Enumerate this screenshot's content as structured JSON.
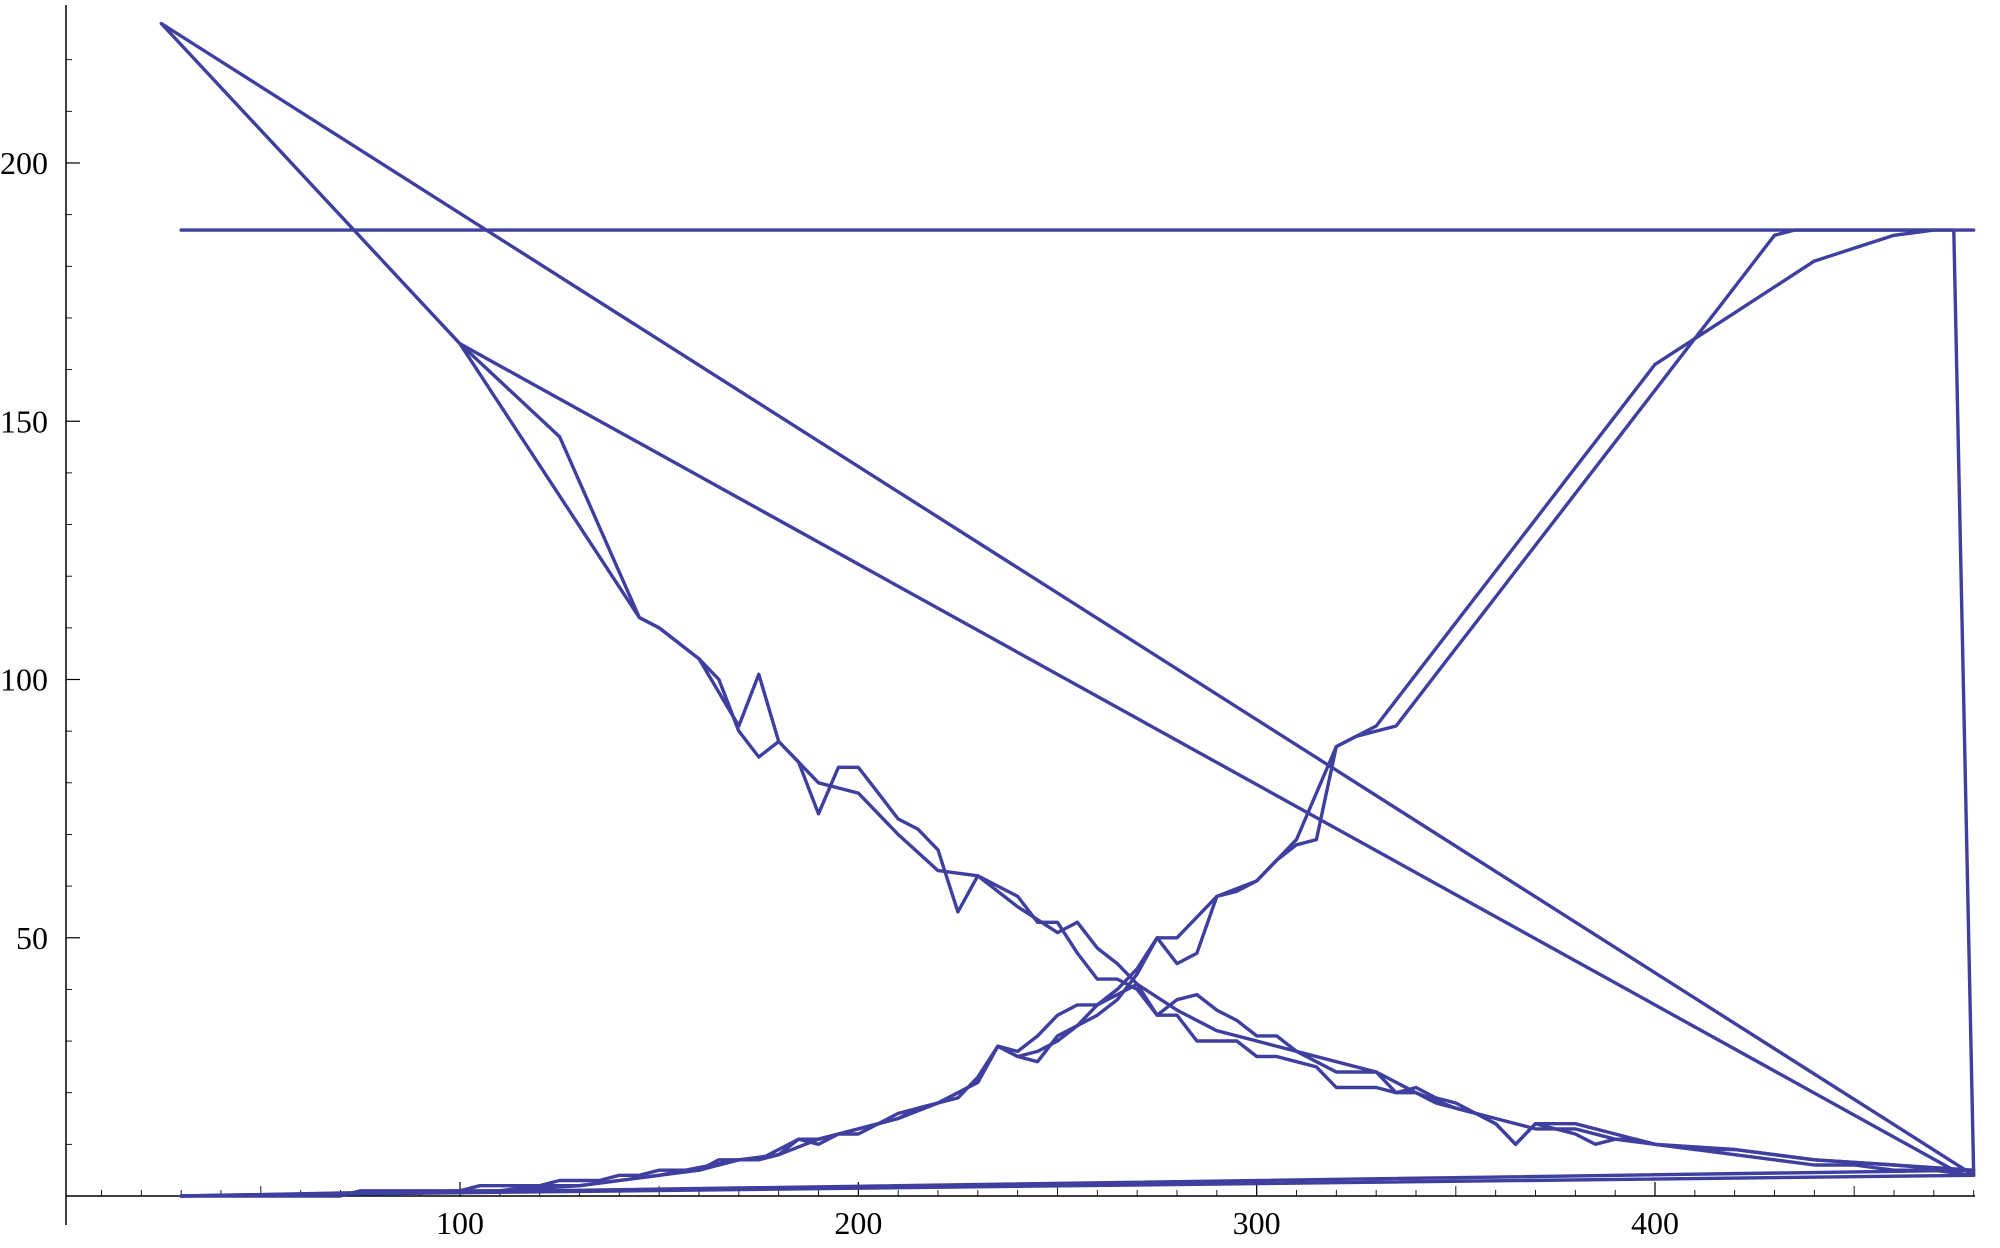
{
  "chart_data": {
    "type": "line",
    "title": "",
    "xlabel": "",
    "ylabel": "",
    "xlim": [
      0,
      482
    ],
    "ylim": [
      0,
      228
    ],
    "x_ticks": [
      100,
      200,
      300,
      400
    ],
    "y_ticks": [
      50,
      100,
      150,
      200
    ],
    "grid": false,
    "legend": "none",
    "colors": {
      "line": "#3F3F9F",
      "axis": "#000000"
    },
    "series": [
      {
        "x": [
          30,
          70,
          75,
          100,
          105,
          110,
          115,
          120,
          125,
          130,
          135,
          140,
          145,
          150,
          155,
          160,
          165,
          170,
          175,
          180,
          185,
          190,
          195,
          200,
          205,
          210,
          215,
          220,
          225,
          230,
          235,
          240,
          245,
          250,
          255,
          260,
          265,
          270,
          275,
          280,
          285,
          290,
          295,
          300,
          305,
          310,
          315,
          320,
          325,
          330,
          335,
          340,
          345,
          350,
          355,
          360,
          365,
          370,
          375,
          380,
          385,
          390,
          395,
          400,
          405,
          410,
          415,
          420,
          425,
          430,
          435,
          440,
          445,
          450,
          455,
          460,
          465,
          470,
          475,
          480,
          30
        ],
        "y": [
          0,
          0,
          1,
          1,
          2,
          2,
          2,
          2,
          3,
          3,
          3,
          4,
          4,
          5,
          5,
          5,
          7,
          7,
          7,
          8,
          11,
          11,
          12,
          13,
          14,
          15,
          17,
          18,
          20,
          22,
          29,
          28,
          31,
          35,
          37,
          37,
          40,
          44,
          50,
          45,
          47,
          58,
          59,
          61,
          65,
          68,
          69,
          87,
          89,
          90,
          91,
          96,
          101,
          106,
          111,
          116,
          121,
          126,
          131,
          136,
          141,
          146,
          151,
          156,
          161,
          166,
          171,
          176,
          181,
          186,
          187,
          187,
          187,
          187,
          187,
          187,
          187,
          187,
          187,
          4,
          0
        ]
      },
      {
        "x": [
          25,
          100,
          125,
          145,
          150,
          155,
          160,
          165,
          170,
          175,
          180,
          185,
          190,
          195,
          200,
          205,
          210,
          215,
          220,
          225,
          230,
          235,
          240,
          245,
          250,
          255,
          260,
          265,
          270,
          275,
          280,
          285,
          290,
          295,
          300,
          305,
          310,
          315,
          320,
          325,
          330,
          335,
          340,
          345,
          350,
          355,
          360,
          365,
          370,
          375,
          380,
          385,
          390,
          395,
          400,
          410,
          420,
          430,
          440,
          450,
          460,
          470,
          480,
          25
        ],
        "y": [
          227,
          165,
          147,
          112,
          110,
          107,
          104,
          100,
          90,
          85,
          88,
          84,
          74,
          83,
          83,
          78,
          73,
          71,
          67,
          55,
          62,
          60,
          58,
          53,
          53,
          47,
          42,
          42,
          40,
          35,
          35,
          30,
          30,
          30,
          27,
          27,
          26,
          25,
          21,
          21,
          21,
          20,
          21,
          19,
          18,
          16,
          14,
          10,
          14,
          13,
          12,
          10,
          11,
          11,
          10,
          9,
          8,
          7,
          6,
          6,
          5,
          5,
          4,
          227
        ]
      },
      {
        "x": [
          30,
          100,
          110,
          120,
          130,
          140,
          150,
          160,
          170,
          175,
          180,
          185,
          190,
          195,
          200,
          205,
          210,
          215,
          220,
          225,
          230,
          235,
          240,
          245,
          250,
          255,
          260,
          265,
          270,
          275,
          280,
          285,
          290,
          295,
          300,
          305,
          310,
          320,
          330,
          335,
          340,
          345,
          350,
          355,
          360,
          365,
          370,
          380,
          390,
          400,
          410,
          420,
          440,
          460,
          480,
          30
        ],
        "y": [
          0,
          1,
          1,
          2,
          2,
          3,
          4,
          5,
          7,
          7,
          9,
          11,
          10,
          12,
          12,
          14,
          16,
          17,
          18,
          19,
          23,
          29,
          27,
          26,
          31,
          33,
          37,
          39,
          41,
          35,
          38,
          39,
          36,
          34,
          31,
          31,
          28,
          26,
          24,
          20,
          20,
          18,
          17,
          16,
          14,
          10,
          14,
          14,
          12,
          10,
          9,
          9,
          7,
          6,
          5,
          0
        ]
      },
      {
        "x": [
          30,
          110,
          130,
          150,
          170,
          180,
          190,
          200,
          210,
          220,
          230,
          235,
          240,
          245,
          250,
          255,
          260,
          265,
          270,
          275,
          280,
          290,
          300,
          310,
          320,
          330,
          340,
          350,
          360,
          370,
          380,
          390,
          400,
          420,
          440,
          460,
          470,
          480,
          30
        ],
        "y": [
          0,
          1,
          2,
          4,
          7,
          8,
          11,
          13,
          15,
          18,
          22,
          29,
          27,
          28,
          30,
          33,
          35,
          38,
          43,
          50,
          50,
          58,
          61,
          69,
          87,
          91,
          101,
          111,
          121,
          131,
          141,
          151,
          161,
          171,
          181,
          186,
          187,
          187,
          187
        ]
      },
      {
        "x": [
          100,
          145,
          150,
          160,
          170,
          175,
          180,
          190,
          200,
          210,
          220,
          230,
          240,
          250,
          255,
          260,
          265,
          270,
          280,
          290,
          300,
          310,
          320,
          330,
          340,
          350,
          360,
          370,
          380,
          390,
          400,
          420,
          440,
          460,
          475,
          100
        ],
        "y": [
          165,
          112,
          110,
          104,
          91,
          101,
          88,
          80,
          78,
          70,
          63,
          62,
          56,
          51,
          53,
          48,
          45,
          41,
          36,
          32,
          30,
          28,
          24,
          24,
          20,
          17,
          15,
          13,
          13,
          11,
          10,
          9,
          7,
          6,
          5,
          165
        ]
      }
    ]
  }
}
